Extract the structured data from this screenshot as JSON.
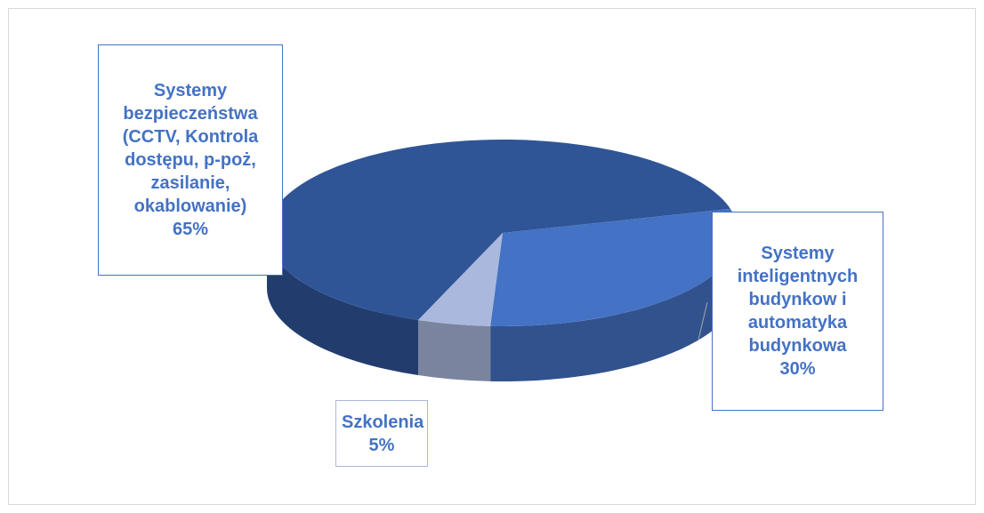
{
  "chart_data": {
    "type": "pie",
    "categories": [
      "Systemy bezpieczeństwa (CCTV, Kontrola dostępu, p-poż, zasilanie, okablowanie)",
      "Systemy inteligentnych budynkow i automatyka budynkowa",
      "Szkolenia"
    ],
    "values": [
      65,
      30,
      5
    ],
    "value_labels": [
      "65%",
      "30%",
      "5%"
    ],
    "colors": [
      "#2f5597",
      "#4472c4",
      "#a9b8dc"
    ]
  }
}
